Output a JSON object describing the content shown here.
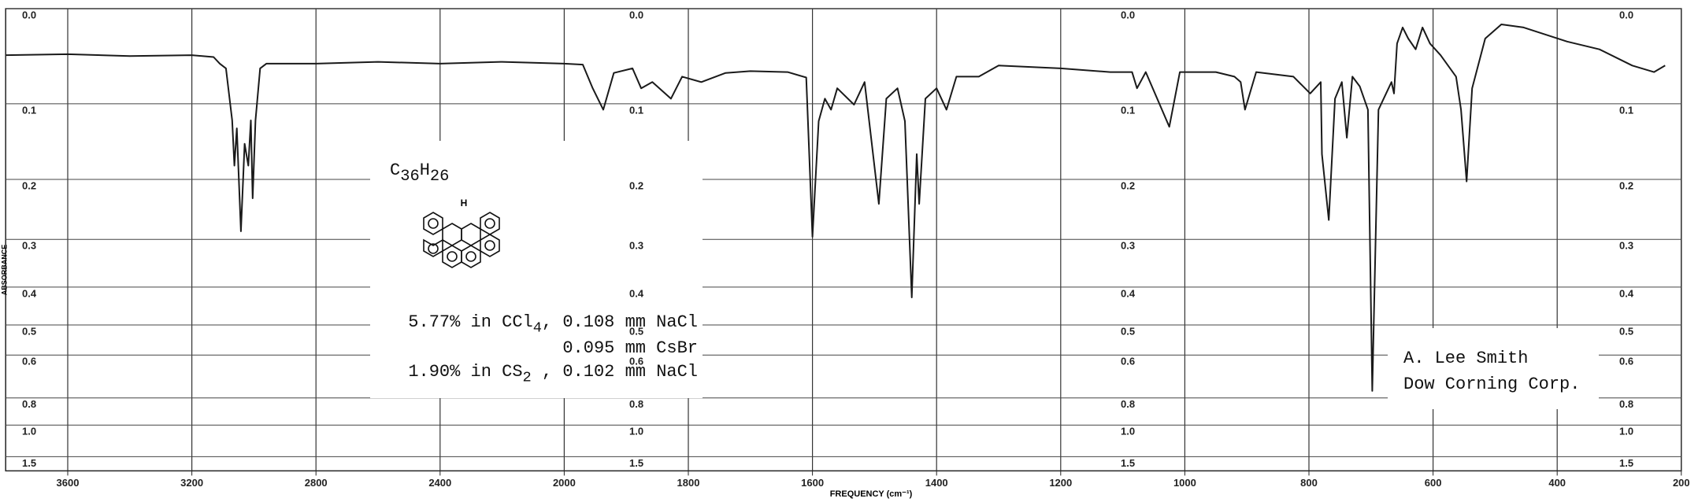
{
  "chart_data": {
    "type": "line",
    "x_label": "FREQUENCY (cm⁻¹)",
    "y_label": "ABSORBANCE",
    "xlim": [
      3800,
      200
    ],
    "xticks": [
      3600,
      3200,
      2800,
      2400,
      2000,
      1800,
      1600,
      1400,
      1200,
      1000,
      800,
      600,
      400,
      200
    ],
    "ylim": [
      0,
      3
    ],
    "yscale": "absorbance",
    "yticks": [
      {
        "value": 0,
        "label": "0.0"
      },
      0.1,
      0.2,
      0.3,
      0.4,
      0.5,
      0.6,
      0.8,
      {
        "value": 1,
        "label": "1.0"
      },
      1.5
    ],
    "grid": true,
    "x": [
      3800,
      3600,
      3400,
      3200,
      3130,
      3110,
      3090,
      3070,
      3063,
      3055,
      3042,
      3030,
      3018,
      3010,
      3004,
      2995,
      2980,
      2960,
      2800,
      2600,
      2400,
      2200,
      2000,
      1970,
      1954,
      1937,
      1920,
      1890,
      1876,
      1858,
      1828,
      1810,
      1779,
      1740,
      1700,
      1640,
      1610,
      1600,
      1590,
      1580,
      1570,
      1560,
      1533,
      1516,
      1493,
      1481,
      1463,
      1451,
      1440,
      1432,
      1428,
      1418,
      1400,
      1384,
      1368,
      1332,
      1300,
      1200,
      1120,
      1085,
      1077,
      1063,
      1025,
      1008,
      950,
      920,
      910,
      903,
      885,
      825,
      798,
      781,
      779,
      768,
      758,
      747,
      739,
      730,
      718,
      705,
      698,
      688,
      667,
      663,
      658,
      649,
      640,
      628,
      617,
      605,
      588,
      563,
      555,
      546,
      537,
      516,
      490,
      454,
      384,
      332,
      279,
      244,
      226
    ],
    "series": [
      {
        "name": "C36H26",
        "color": "#1a1a1a",
        "values": [
          0.046,
          0.045,
          0.047,
          0.046,
          0.048,
          0.055,
          0.06,
          0.12,
          0.18,
          0.13,
          0.285,
          0.15,
          0.18,
          0.12,
          0.229,
          0.12,
          0.06,
          0.055,
          0.055,
          0.053,
          0.055,
          0.053,
          0.055,
          0.056,
          0.082,
          0.107,
          0.065,
          0.06,
          0.082,
          0.075,
          0.094,
          0.069,
          0.075,
          0.065,
          0.063,
          0.064,
          0.07,
          0.295,
          0.121,
          0.094,
          0.107,
          0.082,
          0.101,
          0.075,
          0.238,
          0.094,
          0.082,
          0.121,
          0.425,
          0.164,
          0.238,
          0.094,
          0.082,
          0.107,
          0.069,
          0.069,
          0.057,
          0.06,
          0.064,
          0.064,
          0.082,
          0.064,
          0.128,
          0.064,
          0.064,
          0.069,
          0.075,
          0.107,
          0.064,
          0.069,
          0.088,
          0.075,
          0.164,
          0.265,
          0.094,
          0.075,
          0.142,
          0.069,
          0.08,
          0.107,
          0.76,
          0.107,
          0.075,
          0.088,
          0.034,
          0.018,
          0.029,
          0.04,
          0.018,
          0.034,
          0.046,
          0.069,
          0.107,
          0.203,
          0.082,
          0.029,
          0.015,
          0.018,
          0.032,
          0.04,
          0.057,
          0.064,
          0.057
        ]
      }
    ],
    "formula": [
      "C",
      "36",
      "H",
      "26"
    ],
    "structure_label": "H",
    "sample_notes": [
      [
        "5.77% in CCl",
        "4",
        ", 0.108 mm NaCl"
      ],
      [
        "0.095 mm CsBr"
      ],
      [
        "1.90% in CS",
        "2",
        " , 0.102 mm NaCl"
      ]
    ],
    "credits": [
      "A. Lee Smith",
      "Dow Corning Corp."
    ]
  }
}
